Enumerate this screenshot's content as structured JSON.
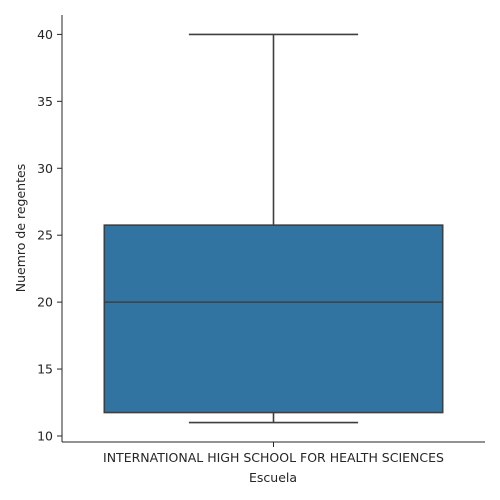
{
  "chart_data": {
    "type": "box",
    "categories": [
      "INTERNATIONAL HIGH SCHOOL FOR HEALTH SCIENCES"
    ],
    "boxes": [
      {
        "category": "INTERNATIONAL HIGH SCHOOL FOR HEALTH SCIENCES",
        "min": 11,
        "q1": 11.75,
        "median": 20,
        "q3": 25.75,
        "max": 40
      }
    ],
    "xlabel": "Escuela",
    "ylabel": "Nuemro de regentes",
    "ylim": [
      9.55,
      41.45
    ],
    "yticks": [
      10,
      15,
      20,
      25,
      30,
      35,
      40
    ],
    "ytick_labels": [
      "10",
      "15",
      "20",
      "25",
      "30",
      "35",
      "40"
    ],
    "grid": false,
    "colors": {
      "box": "#3274a1",
      "line": "#3f3f3f",
      "axis": "#262626"
    }
  }
}
